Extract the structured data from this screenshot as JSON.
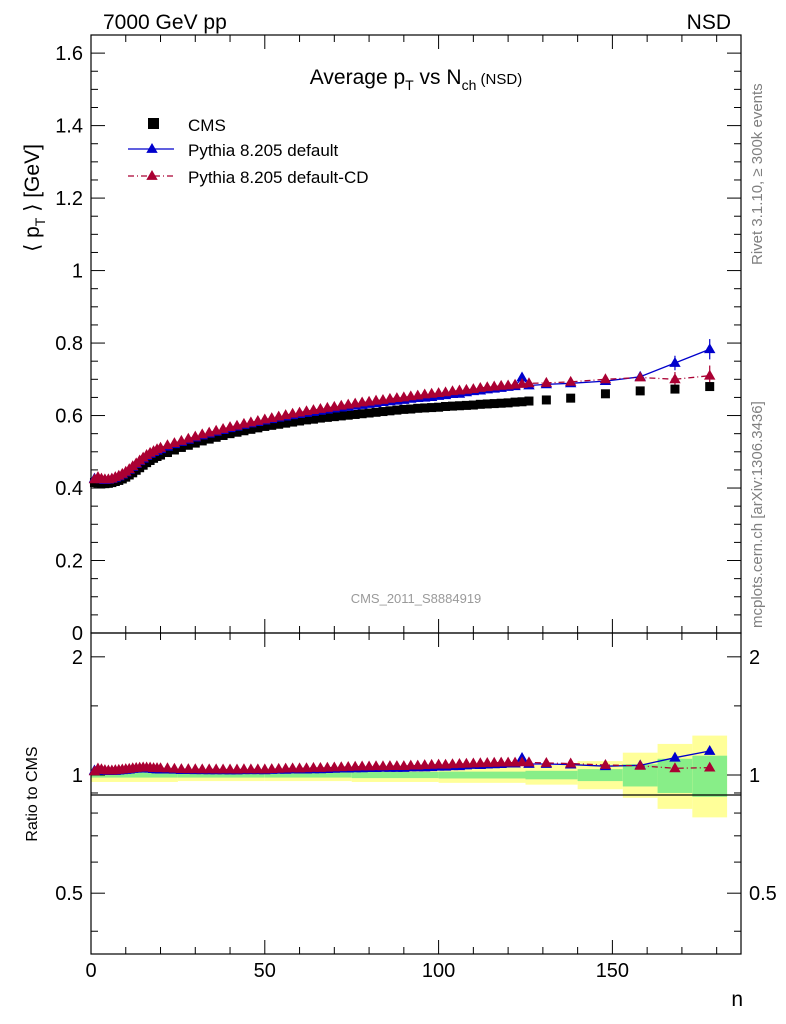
{
  "header": {
    "left": "7000 GeV pp",
    "right": "NSD"
  },
  "side_text": {
    "rivet": "Rivet 3.1.10, ≥ 300k events",
    "source": "mcplots.cern.ch [arXiv:1306.3436]"
  },
  "watermark": "CMS_2011_S8884919",
  "colors": {
    "cms": "#000000",
    "default": "#0000cc",
    "cd": "#aa0033",
    "band_inner": "#88ee88",
    "band_outer": "#ffff99"
  },
  "chart_data": [
    {
      "type": "scatter",
      "title": {
        "main": "Average p",
        "sub1": "T",
        "mid": " vs N",
        "sub2": "ch",
        "tail": " (NSD)"
      },
      "ylabel": {
        "pre": "⟨ p",
        "sub": "T",
        "post": " ⟩ [GeV]"
      },
      "xlim": [
        0,
        187
      ],
      "ylim": [
        0,
        1.65
      ],
      "yticks": [
        "0",
        "0.2",
        "0.4",
        "0.6",
        "0.8",
        "1",
        "1.2",
        "1.4",
        "1.6"
      ],
      "legend": {
        "placement": "top-left",
        "entries": [
          "CMS",
          "Pythia 8.205 default",
          "Pythia 8.205 default-CD"
        ]
      },
      "series": [
        {
          "name": "CMS",
          "marker": "square",
          "x": [
            1,
            2,
            3,
            4,
            5,
            6,
            7,
            8,
            9,
            10,
            11,
            12,
            13,
            14,
            15,
            16,
            17,
            18,
            19,
            20,
            22,
            24,
            26,
            28,
            30,
            32,
            34,
            36,
            38,
            40,
            42,
            44,
            46,
            48,
            50,
            52,
            54,
            56,
            58,
            60,
            62,
            64,
            66,
            68,
            70,
            72,
            74,
            76,
            78,
            80,
            82,
            84,
            86,
            88,
            90,
            92,
            94,
            96,
            98,
            100,
            102,
            104,
            106,
            108,
            110,
            112,
            114,
            116,
            118,
            120,
            122,
            124,
            126,
            131,
            138,
            148,
            158,
            168,
            178
          ],
          "y": [
            0.415,
            0.414,
            0.412,
            0.412,
            0.413,
            0.415,
            0.418,
            0.421,
            0.425,
            0.43,
            0.436,
            0.442,
            0.449,
            0.456,
            0.463,
            0.47,
            0.476,
            0.482,
            0.487,
            0.491,
            0.498,
            0.505,
            0.512,
            0.518,
            0.524,
            0.53,
            0.535,
            0.54,
            0.545,
            0.55,
            0.554,
            0.558,
            0.562,
            0.566,
            0.57,
            0.573,
            0.576,
            0.579,
            0.582,
            0.585,
            0.588,
            0.59,
            0.593,
            0.595,
            0.597,
            0.599,
            0.601,
            0.603,
            0.605,
            0.607,
            0.609,
            0.611,
            0.613,
            0.615,
            0.617,
            0.618,
            0.62,
            0.621,
            0.622,
            0.623,
            0.625,
            0.626,
            0.627,
            0.628,
            0.629,
            0.631,
            0.632,
            0.633,
            0.634,
            0.635,
            0.637,
            0.638,
            0.64,
            0.643,
            0.648,
            0.66,
            0.668,
            0.673,
            0.68
          ]
        },
        {
          "name": "Pythia 8.205 default",
          "marker": "triangle",
          "x": [
            1,
            2,
            3,
            4,
            5,
            6,
            7,
            8,
            9,
            10,
            11,
            12,
            13,
            14,
            15,
            16,
            17,
            18,
            19,
            20,
            22,
            24,
            26,
            28,
            30,
            32,
            34,
            36,
            38,
            40,
            42,
            44,
            46,
            48,
            50,
            52,
            54,
            56,
            58,
            60,
            62,
            64,
            66,
            68,
            70,
            72,
            74,
            76,
            78,
            80,
            82,
            84,
            86,
            88,
            90,
            92,
            94,
            96,
            98,
            100,
            102,
            104,
            106,
            108,
            110,
            112,
            114,
            116,
            118,
            120,
            122,
            124,
            126,
            131,
            138,
            148,
            158,
            168,
            178
          ],
          "y": [
            0.426,
            0.428,
            0.424,
            0.422,
            0.423,
            0.425,
            0.428,
            0.432,
            0.437,
            0.443,
            0.45,
            0.458,
            0.466,
            0.474,
            0.481,
            0.488,
            0.494,
            0.499,
            0.503,
            0.507,
            0.514,
            0.521,
            0.527,
            0.533,
            0.539,
            0.545,
            0.55,
            0.555,
            0.56,
            0.565,
            0.569,
            0.574,
            0.578,
            0.582,
            0.586,
            0.59,
            0.594,
            0.597,
            0.601,
            0.604,
            0.607,
            0.61,
            0.613,
            0.616,
            0.619,
            0.622,
            0.624,
            0.627,
            0.629,
            0.632,
            0.634,
            0.637,
            0.639,
            0.641,
            0.643,
            0.646,
            0.648,
            0.649,
            0.651,
            0.654,
            0.656,
            0.659,
            0.66,
            0.664,
            0.667,
            0.669,
            0.672,
            0.674,
            0.676,
            0.679,
            0.681,
            0.705,
            0.683,
            0.686,
            0.689,
            0.695,
            0.707,
            0.745,
            0.783
          ]
        },
        {
          "name": "Pythia 8.205 default-CD",
          "marker": "triangle",
          "x": [
            1,
            2,
            3,
            4,
            5,
            6,
            7,
            8,
            9,
            10,
            11,
            12,
            13,
            14,
            15,
            16,
            17,
            18,
            19,
            20,
            22,
            24,
            26,
            28,
            30,
            32,
            34,
            36,
            38,
            40,
            42,
            44,
            46,
            48,
            50,
            52,
            54,
            56,
            58,
            60,
            62,
            64,
            66,
            68,
            70,
            72,
            74,
            76,
            78,
            80,
            82,
            84,
            86,
            88,
            90,
            92,
            94,
            96,
            98,
            100,
            102,
            104,
            106,
            108,
            110,
            112,
            114,
            116,
            118,
            120,
            122,
            124,
            126,
            131,
            138,
            148,
            158,
            168,
            178
          ],
          "y": [
            0.424,
            0.43,
            0.426,
            0.424,
            0.424,
            0.426,
            0.43,
            0.434,
            0.439,
            0.445,
            0.452,
            0.46,
            0.468,
            0.476,
            0.484,
            0.491,
            0.497,
            0.502,
            0.507,
            0.511,
            0.518,
            0.524,
            0.53,
            0.536,
            0.542,
            0.548,
            0.553,
            0.558,
            0.563,
            0.568,
            0.572,
            0.577,
            0.581,
            0.585,
            0.589,
            0.593,
            0.597,
            0.601,
            0.605,
            0.608,
            0.612,
            0.615,
            0.618,
            0.621,
            0.624,
            0.627,
            0.63,
            0.633,
            0.636,
            0.638,
            0.641,
            0.643,
            0.646,
            0.648,
            0.65,
            0.653,
            0.655,
            0.658,
            0.66,
            0.662,
            0.664,
            0.667,
            0.669,
            0.671,
            0.673,
            0.676,
            0.678,
            0.68,
            0.682,
            0.683,
            0.685,
            0.687,
            0.689,
            0.69,
            0.693,
            0.7,
            0.705,
            0.7,
            0.71
          ]
        }
      ]
    },
    {
      "type": "scatter",
      "ylabel": "Ratio to CMS",
      "xlabel": "n",
      "xlim": [
        0,
        187
      ],
      "ylim": [
        0.35,
        2.3
      ],
      "yscale": "log",
      "xticks": [
        "0",
        "50",
        "100",
        "150"
      ],
      "yticks": [
        "0.5",
        "1",
        "2"
      ],
      "band": {
        "edges": [
          0,
          25,
          50,
          75,
          100,
          125,
          140,
          153,
          163,
          173,
          183
        ],
        "inner_low": [
          0.985,
          0.985,
          0.985,
          0.982,
          0.98,
          0.975,
          0.965,
          0.935,
          0.9,
          0.88
        ],
        "inner_high": [
          1.015,
          1.015,
          1.015,
          1.018,
          1.02,
          1.025,
          1.035,
          1.065,
          1.1,
          1.12
        ],
        "outer_low": [
          0.96,
          0.965,
          0.965,
          0.96,
          0.955,
          0.945,
          0.92,
          0.875,
          0.82,
          0.78
        ],
        "outer_high": [
          1.04,
          1.035,
          1.035,
          1.04,
          1.045,
          1.06,
          1.085,
          1.14,
          1.2,
          1.26
        ]
      }
    }
  ]
}
